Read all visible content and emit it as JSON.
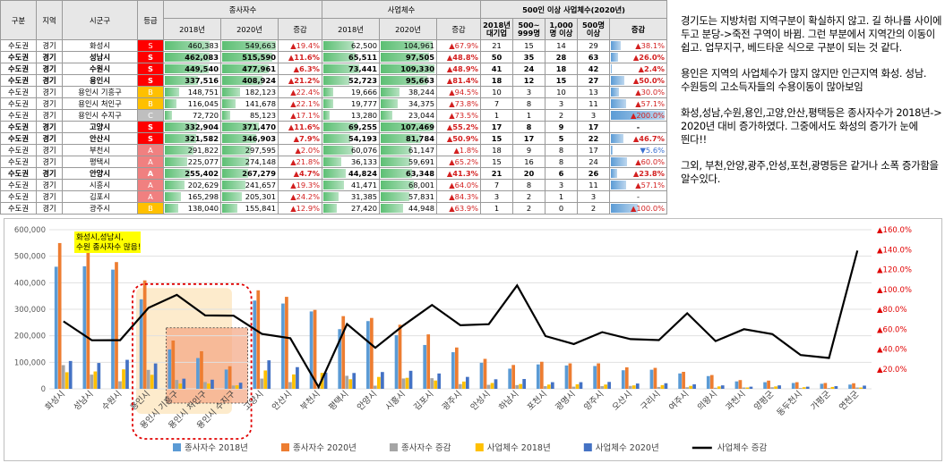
{
  "table": {
    "headers": {
      "region_group": "구분",
      "province": "지역",
      "city": "시군구",
      "grade": "등급",
      "employees": "종사자수",
      "businesses": "사업체수",
      "large": "500인 이상 사업체수(2020년)",
      "y2018": "2018년",
      "y2020": "2020년",
      "change": "증감",
      "large_cols": [
        "2018년 대기업",
        "500~ 999명",
        "1,000명 이상",
        "500명 이상",
        "증감"
      ]
    },
    "max_emp": 549663,
    "max_biz": 109330,
    "rows": [
      {
        "g": "수도권",
        "p": "경기",
        "c": "화성시",
        "gr": "S",
        "e18": "460,383",
        "e20": "549,663",
        "ec": "▲19.4%",
        "b18": "62,500",
        "b20": "104,961",
        "bc": "▲67.9%",
        "l18": "21",
        "l1": "15",
        "l2": "14",
        "l3": "29",
        "lc": "▲38.1%",
        "lcd": "up",
        "lcv": 38.1,
        "bold": false
      },
      {
        "g": "수도권",
        "p": "경기",
        "c": "성남시",
        "gr": "S",
        "e18": "462,083",
        "e20": "515,590",
        "ec": "▲11.6%",
        "b18": "65,511",
        "b20": "97,505",
        "bc": "▲48.8%",
        "l18": "50",
        "l1": "35",
        "l2": "28",
        "l3": "63",
        "lc": "▲26.0%",
        "lcd": "up",
        "lcv": 26.0,
        "bold": true
      },
      {
        "g": "수도권",
        "p": "경기",
        "c": "수원시",
        "gr": "S",
        "e18": "449,540",
        "e20": "477,961",
        "ec": "▲6.3%",
        "b18": "73,441",
        "b20": "109,330",
        "bc": "▲48.9%",
        "l18": "41",
        "l1": "24",
        "l2": "18",
        "l3": "42",
        "lc": "▲2.4%",
        "lcd": "up",
        "lcv": 2.4,
        "bold": true
      },
      {
        "g": "수도권",
        "p": "경기",
        "c": "용인시",
        "gr": "S",
        "e18": "337,516",
        "e20": "408,924",
        "ec": "▲21.2%",
        "b18": "52,723",
        "b20": "95,663",
        "bc": "▲81.4%",
        "l18": "18",
        "l1": "12",
        "l2": "15",
        "l3": "27",
        "lc": "▲50.0%",
        "lcd": "up",
        "lcv": 50.0,
        "bold": true
      },
      {
        "g": "수도권",
        "p": "경기",
        "c": "용인시 기흥구",
        "gr": "B",
        "e18": "148,751",
        "e20": "182,123",
        "ec": "▲22.4%",
        "b18": "19,666",
        "b20": "38,244",
        "bc": "▲94.5%",
        "l18": "10",
        "l1": "3",
        "l2": "10",
        "l3": "13",
        "lc": "▲30.0%",
        "lcd": "up",
        "lcv": 30.0,
        "bold": false
      },
      {
        "g": "수도권",
        "p": "경기",
        "c": "용인시 처인구",
        "gr": "B",
        "e18": "116,045",
        "e20": "141,678",
        "ec": "▲22.1%",
        "b18": "19,777",
        "b20": "34,375",
        "bc": "▲73.8%",
        "l18": "7",
        "l1": "8",
        "l2": "3",
        "l3": "11",
        "lc": "▲57.1%",
        "lcd": "up",
        "lcv": 57.1,
        "bold": false
      },
      {
        "g": "수도권",
        "p": "경기",
        "c": "용인시 수지구",
        "gr": "C",
        "e18": "72,720",
        "e20": "85,123",
        "ec": "▲17.1%",
        "b18": "13,280",
        "b20": "23,044",
        "bc": "▲73.5%",
        "l18": "1",
        "l1": "1",
        "l2": "2",
        "l3": "3",
        "lc": "▲200.0%",
        "lcd": "up",
        "lcv": 200.0,
        "bold": false
      },
      {
        "g": "수도권",
        "p": "경기",
        "c": "고양시",
        "gr": "S",
        "e18": "332,904",
        "e20": "371,470",
        "ec": "▲11.6%",
        "b18": "69,255",
        "b20": "107,469",
        "bc": "▲55.2%",
        "l18": "17",
        "l1": "8",
        "l2": "9",
        "l3": "17",
        "lc": "-",
        "lcd": "none",
        "lcv": 0,
        "bold": true
      },
      {
        "g": "수도권",
        "p": "경기",
        "c": "안산시",
        "gr": "S",
        "e18": "321,582",
        "e20": "346,903",
        "ec": "▲7.9%",
        "b18": "54,193",
        "b20": "81,784",
        "bc": "▲50.9%",
        "l18": "15",
        "l1": "17",
        "l2": "5",
        "l3": "22",
        "lc": "▲46.7%",
        "lcd": "up",
        "lcv": 46.7,
        "bold": true
      },
      {
        "g": "수도권",
        "p": "경기",
        "c": "부천시",
        "gr": "A",
        "e18": "291,822",
        "e20": "297,595",
        "ec": "▲2.0%",
        "b18": "60,076",
        "b20": "61,147",
        "bc": "▲1.8%",
        "l18": "18",
        "l1": "9",
        "l2": "8",
        "l3": "17",
        "lc": "▼5.6%",
        "lcd": "dn",
        "lcv": 5.6,
        "bold": false
      },
      {
        "g": "수도권",
        "p": "경기",
        "c": "평택시",
        "gr": "A",
        "e18": "225,077",
        "e20": "274,148",
        "ec": "▲21.8%",
        "b18": "36,133",
        "b20": "59,691",
        "bc": "▲65.2%",
        "l18": "15",
        "l1": "16",
        "l2": "8",
        "l3": "24",
        "lc": "▲60.0%",
        "lcd": "up",
        "lcv": 60.0,
        "bold": false
      },
      {
        "g": "수도권",
        "p": "경기",
        "c": "안양시",
        "gr": "A",
        "e18": "255,402",
        "e20": "267,279",
        "ec": "▲4.7%",
        "b18": "44,824",
        "b20": "63,348",
        "bc": "▲41.3%",
        "l18": "21",
        "l1": "20",
        "l2": "6",
        "l3": "26",
        "lc": "▲23.8%",
        "lcd": "up",
        "lcv": 23.8,
        "bold": true
      },
      {
        "g": "수도권",
        "p": "경기",
        "c": "시흥시",
        "gr": "A",
        "e18": "202,629",
        "e20": "241,657",
        "ec": "▲19.3%",
        "b18": "41,471",
        "b20": "68,001",
        "bc": "▲64.0%",
        "l18": "7",
        "l1": "8",
        "l2": "3",
        "l3": "11",
        "lc": "▲57.1%",
        "lcd": "up",
        "lcv": 57.1,
        "bold": false
      },
      {
        "g": "수도권",
        "p": "경기",
        "c": "김포시",
        "gr": "A",
        "e18": "165,298",
        "e20": "205,301",
        "ec": "▲24.2%",
        "b18": "31,385",
        "b20": "57,831",
        "bc": "▲84.3%",
        "l18": "3",
        "l1": "2",
        "l2": "1",
        "l3": "3",
        "lc": "-",
        "lcd": "none",
        "lcv": 0,
        "bold": false
      },
      {
        "g": "수도권",
        "p": "경기",
        "c": "광주시",
        "gr": "B",
        "e18": "138,040",
        "e20": "155,841",
        "ec": "▲12.9%",
        "b18": "27,420",
        "b20": "44,948",
        "bc": "▲63.9%",
        "l18": "1",
        "l1": "2",
        "l2": "0",
        "l3": "2",
        "lc": "▲100.0%",
        "lcd": "up",
        "lcv": 100.0,
        "bold": false
      }
    ]
  },
  "notes": [
    "경기도는 지방처럼 지역구분이 확실하지 않고. 길 하나를 사이에 두고 분당->죽전 구역이 바뀜. 그런 부분에서 지역간의 이동이 쉽고. 업무지구, 베드타운 식으로 구분이 되는 것 같다.",
    "용인은 지역의 사업체수가 많지 않지만 인근지역 화성. 성남.수원등의 고소득자들의 수용이동이 많아보임",
    "화성,성남,수원,용인,고양,안산,평택등은 종사자수가 2018년-> 2020년 대비 증가하였다. 그중에서도 화성의 증가가 눈에 띈다!!",
    "그외, 부천,안양,광주,안성,포천,광명등은 같거나 소폭 증가함을 알수있다."
  ],
  "chart_data": {
    "type": "bar",
    "categories": [
      "화성시",
      "성남시",
      "수원시",
      "용인시",
      "용인시 기흥구",
      "용인시 처인구",
      "용인시 수지구",
      "고양시",
      "안산시",
      "부천시",
      "평택시",
      "안양시",
      "시흥시",
      "김포시",
      "광주시",
      "안성시",
      "하남시",
      "포천시",
      "광명시",
      "양주시",
      "오산시",
      "구리시",
      "여주시",
      "의왕시",
      "과천시",
      "양평군",
      "동두천시",
      "가평군",
      "연천군"
    ],
    "annotation": "화성시,성남시, 수원 종사자수 많음!",
    "ylim": [
      0,
      600000
    ],
    "y2lim": [
      0,
      160
    ],
    "y_ticks": [
      "0",
      "100,000",
      "200,000",
      "300,000",
      "400,000",
      "500,000",
      "600,000"
    ],
    "y2_ticks": [
      "",
      "▲20.0%",
      "▲40.0%",
      "▲60.0%",
      "▲80.0%",
      "▲100.0%",
      "▲120.0%",
      "▲140.0%",
      "▲160.0%"
    ],
    "series": [
      {
        "name": "종사자수 2018년",
        "color": "#5b9bd5",
        "axis": "left",
        "values": [
          460383,
          462083,
          449540,
          337516,
          148751,
          116045,
          72720,
          332904,
          321582,
          291822,
          225077,
          255402,
          202629,
          165298,
          138040,
          98000,
          76000,
          92000,
          88000,
          86000,
          70000,
          72000,
          58000,
          48000,
          28000,
          25000,
          22000,
          19000,
          16000
        ]
      },
      {
        "name": "종사자수 2020년",
        "color": "#ed7d31",
        "axis": "left",
        "values": [
          549663,
          515590,
          477961,
          408924,
          182123,
          141678,
          85123,
          371470,
          346903,
          297595,
          274148,
          267279,
          241657,
          205301,
          155841,
          113000,
          90000,
          102000,
          96000,
          96000,
          81000,
          79000,
          64000,
          52000,
          33000,
          31000,
          25000,
          22000,
          21000
        ]
      },
      {
        "name": "종사자수 증감",
        "color": "#a5a5a5",
        "axis": "left",
        "values": [
          89280,
          53507,
          28421,
          71408,
          33372,
          25633,
          12403,
          38566,
          25321,
          5773,
          49071,
          11877,
          39028,
          40003,
          17801,
          15000,
          14000,
          10000,
          8000,
          10000,
          11000,
          7000,
          6000,
          4000,
          5000,
          6000,
          3000,
          3000,
          5000
        ]
      },
      {
        "name": "사업체수 2018년",
        "color": "#ffc000",
        "axis": "left",
        "values": [
          62500,
          65511,
          73441,
          52723,
          19666,
          19777,
          13280,
          69255,
          54193,
          60076,
          36133,
          44824,
          41471,
          31385,
          27420,
          22000,
          18000,
          16000,
          17000,
          16000,
          13000,
          14000,
          11000,
          9000,
          5000,
          9000,
          6000,
          7000,
          5000
        ]
      },
      {
        "name": "사업체수 2020년",
        "color": "#4472c4",
        "axis": "left",
        "values": [
          104961,
          97505,
          109330,
          95663,
          38244,
          34375,
          23044,
          107469,
          81784,
          61147,
          59691,
          63348,
          68001,
          57831,
          44948,
          36000,
          37000,
          25000,
          25000,
          26000,
          20000,
          21000,
          17000,
          13000,
          8000,
          13000,
          8000,
          10000,
          12000
        ]
      },
      {
        "name": "사업체수 증감",
        "color": "#000000",
        "axis": "right",
        "type": "line",
        "values": [
          67.9,
          48.8,
          48.9,
          81.4,
          94.5,
          73.8,
          73.5,
          55.2,
          50.9,
          1.8,
          65.2,
          41.3,
          64.0,
          84.3,
          63.9,
          65.0,
          104.0,
          53.0,
          45.0,
          57.0,
          50.0,
          49.0,
          76.0,
          48.0,
          60.0,
          55.0,
          34.0,
          31.0,
          139.0
        ]
      }
    ]
  }
}
